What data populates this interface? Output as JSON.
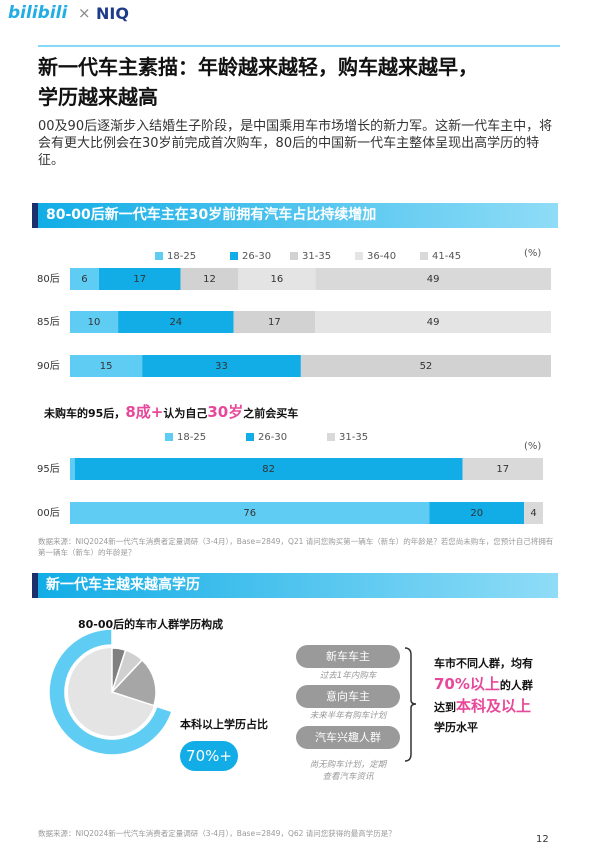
{
  "header": {
    "logo_left": "bilibili",
    "separator": "×",
    "logo_right": "NIQ"
  },
  "title_lines": [
    "新一代车主素描：年龄越来越轻，购车越来越早，",
    "学历越来越高"
  ],
  "intro": "00及90后逐渐步入结婚生子阶段，是中国乘用车市场增长的新力军。这新一代车主中，将会有更大比例会在30岁前完成首次购车，80后的中国新一代车主整体呈现出高学历的特征。",
  "section1": "80-00后新一代车主在30岁前拥有汽车占比持续增加",
  "chart_data": [
    {
      "type": "stacked_bar_horizontal",
      "unit": "(%)",
      "categories": [
        "80后",
        "85后",
        "90后"
      ],
      "series": [
        {
          "name": "18-25",
          "color": "#5fcdf3",
          "values": [
            6,
            10,
            15
          ]
        },
        {
          "name": "26-30",
          "color": "#12ade6",
          "values": [
            17,
            24,
            33
          ]
        },
        {
          "name": "31-35",
          "color": "#d2d2d2",
          "values": [
            12,
            17,
            52
          ]
        },
        {
          "name": "36-40",
          "color": "#e4e4e4",
          "values": [
            16,
            49,
            null
          ]
        },
        {
          "name": "41-45",
          "color": "#d9d9d9",
          "values": [
            49,
            null,
            null
          ]
        }
      ],
      "xlim": [
        0,
        100
      ]
    },
    {
      "type": "stacked_bar_horizontal",
      "title_parts": [
        "未购车的95后，",
        "8成+",
        "认为自己",
        "30岁",
        "之前会买车"
      ],
      "unit": "(%)",
      "categories": [
        "95后",
        "00后"
      ],
      "series": [
        {
          "name": "18-25",
          "color": "#5fcdf3",
          "values": [
            1,
            76
          ]
        },
        {
          "name": "26-30",
          "color": "#12ade6",
          "values": [
            82,
            20
          ]
        },
        {
          "name": "31-35",
          "color": "#d9d9d9",
          "values": [
            17,
            4
          ]
        }
      ],
      "xlim": [
        0,
        100
      ]
    },
    {
      "type": "pie",
      "title": "80-00后的车市人群学历构成",
      "values": [
        5,
        7,
        18,
        70
      ],
      "colors": [
        "#808080",
        "#d0d0d0",
        "#a6a6a6",
        "#5fcdf3"
      ],
      "callout_label": "本科以上学历占比",
      "callout_value": "70%+"
    }
  ],
  "note1": "数据来源：NIQ2024新一代汽车消费者定量调研（3-4月），Base=2849，Q21 请问您购买第一辆车（新车）的年龄是？若您尚未购车，您预计自己将拥有第一辆车（新车）的年龄是？",
  "section2": "新一代车主越来越高学历",
  "segments": [
    {
      "name": "新车车主",
      "desc": [
        "过去1年内购车"
      ]
    },
    {
      "name": "意向车主",
      "desc": [
        "未来半年有购车计划"
      ]
    },
    {
      "name": "汽车兴趣人群",
      "desc": [
        "尚无购车计划，定期",
        "查看汽车资讯"
      ]
    }
  ],
  "conclusion": {
    "line1": "车市不同人群，均有",
    "highlight1": "70%以上",
    "after1": "的人群",
    "before2": "达到",
    "highlight2": "本科及以上",
    "line4": "学历水平"
  },
  "note2": "数据来源：NIQ2024新一代汽车消费者定量调研（3-4月），Base=2849，Q62 请问您获得的最高学历是？",
  "page_number": "12"
}
